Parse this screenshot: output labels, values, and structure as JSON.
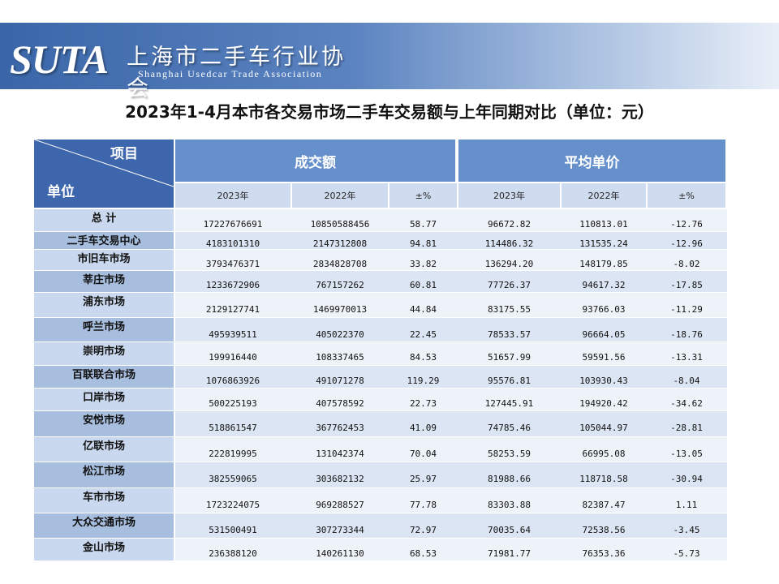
{
  "header": {
    "logo_text": "SUTA",
    "org_name_cn": "上海市二手车行业协会",
    "org_name_en": "Shanghai Usedcar Trade Association"
  },
  "title": "2023年1-4月本市各交易市场二手车交易额与上年同期对比（单位：元）",
  "table": {
    "corner_top": "项目",
    "corner_bottom": "单位",
    "groups": [
      "成交额",
      "平均单价"
    ],
    "subheaders": [
      "2023年",
      "2022年",
      "±%",
      "2023年",
      "2022年",
      "±%"
    ],
    "rows": [
      {
        "name": "总 计",
        "values": [
          "17227676691",
          "10850588456",
          "58.77",
          "96672.82",
          "110813.01",
          "-12.76"
        ]
      },
      {
        "name": "二手车交易中心",
        "values": [
          "4183101310",
          "2147312808",
          "94.81",
          "114486.32",
          "131535.24",
          "-12.96"
        ]
      },
      {
        "name": "市旧车市场",
        "values": [
          "3793476371",
          "2834828708",
          "33.82",
          "136294.20",
          "148179.85",
          "-8.02"
        ]
      },
      {
        "name": "莘庄市场",
        "values": [
          "1233672906",
          "767157262",
          "60.81",
          "77726.37",
          "94617.32",
          "-17.85"
        ]
      },
      {
        "name": "浦东市场",
        "values": [
          "2129127741",
          "1469970013",
          "44.84",
          "83175.55",
          "93766.03",
          "-11.29"
        ]
      },
      {
        "name": "呼兰市场",
        "values": [
          "495939511",
          "405022370",
          "22.45",
          "78533.57",
          "96664.05",
          "-18.76"
        ]
      },
      {
        "name": "崇明市场",
        "values": [
          "199916440",
          "108337465",
          "84.53",
          "51657.99",
          "59591.56",
          "-13.31"
        ]
      },
      {
        "name": "百联联合市场",
        "values": [
          "1076863926",
          "491071278",
          "119.29",
          "95576.81",
          "103930.43",
          "-8.04"
        ]
      },
      {
        "name": "口岸市场",
        "values": [
          "500225193",
          "407578592",
          "22.73",
          "127445.91",
          "194920.42",
          "-34.62"
        ]
      },
      {
        "name": "安悦市场",
        "values": [
          "518861547",
          "367762453",
          "41.09",
          "74785.46",
          "105044.97",
          "-28.81"
        ]
      },
      {
        "name": "亿联市场",
        "values": [
          "222819995",
          "131042374",
          "70.04",
          "58253.59",
          "66995.08",
          "-13.05"
        ]
      },
      {
        "name": "松江市场",
        "values": [
          "382559065",
          "303682132",
          "25.97",
          "81988.66",
          "118718.58",
          "-30.94"
        ]
      },
      {
        "name": "车市市场",
        "values": [
          "1723224075",
          "969288527",
          "77.78",
          "83303.88",
          "82387.47",
          "1.11"
        ]
      },
      {
        "name": "大众交通市场",
        "values": [
          "531500491",
          "307273344",
          "72.97",
          "70035.64",
          "72538.56",
          "-3.45"
        ]
      },
      {
        "name": "金山市场",
        "values": [
          "236388120",
          "140261130",
          "68.53",
          "71981.77",
          "76353.36",
          "-5.73"
        ]
      }
    ]
  },
  "colors": {
    "header_dark": "#3a66a8",
    "corner_blue": "#3d66ac",
    "group_header": "#6690cc",
    "subheader": "#cfdcef",
    "label_dark": "#a7bedf",
    "label_light": "#c9d8ee",
    "row_dark": "#dbe5f3",
    "row_light": "#eef3fa"
  }
}
